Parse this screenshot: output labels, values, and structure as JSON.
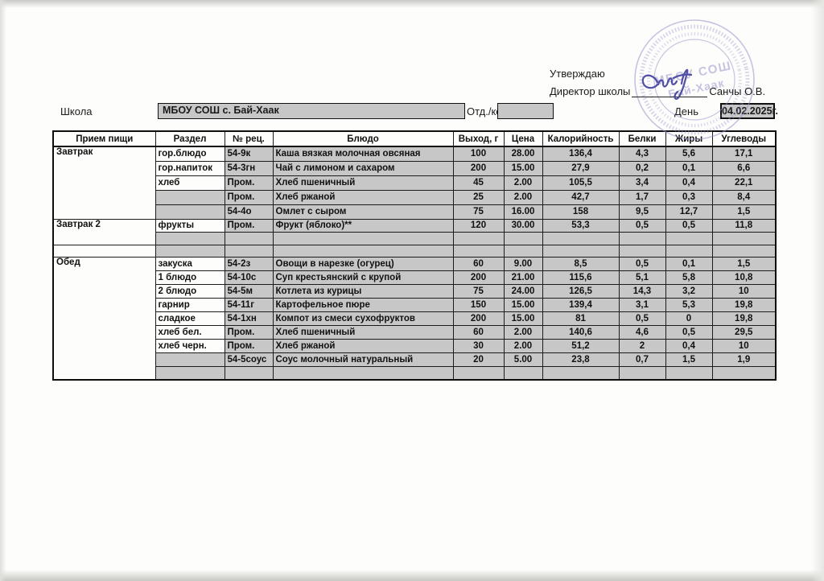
{
  "header": {
    "approve_label": "Утверждаю",
    "director_label": "Директор школы",
    "director_name": "Санчы О.В.",
    "stamp": {
      "line1": "МБОУ СОШ",
      "line2": "Бай-Хаак",
      "color": "#9c92cc"
    },
    "signature_ink_color": "#44439e"
  },
  "fields": {
    "school_label": "Школа",
    "school_value": "МБОУ СОШ с. Бай-Хаак",
    "dept_label": "Отд./корп",
    "dept_value": "",
    "day_label": "День",
    "day_value": "04.02.2025г."
  },
  "colors": {
    "cell_shade": "#c7c7c7",
    "paper": "#fdfdfb"
  },
  "table": {
    "headers": [
      "Прием пищи",
      "Раздел",
      "№ рец.",
      "Блюдо",
      "Выход, г",
      "Цена",
      "Калорийность",
      "Белки",
      "Жиры",
      "Углеводы"
    ],
    "sections": [
      {
        "meal": "Завтрак",
        "rows": [
          {
            "razdel": "гор.блюдо",
            "rec": "54-9к",
            "dish": "Каша вязкая молочная овсяная",
            "out": "100",
            "price": "28.00",
            "kcal": "136,4",
            "protein": "4,3",
            "fat": "5,6",
            "carbs": "17,1"
          },
          {
            "razdel": "гор.напиток",
            "rec": "54-3гн",
            "dish": "Чай с лимоном и сахаром",
            "out": "200",
            "price": "15.00",
            "kcal": "27,9",
            "protein": "0,2",
            "fat": "0,1",
            "carbs": "6,6"
          },
          {
            "razdel": "хлеб",
            "rec": "Пром.",
            "dish": "Хлеб пшеничный",
            "out": "45",
            "price": "2.00",
            "kcal": "105,5",
            "protein": "3,4",
            "fat": "0,4",
            "carbs": "22,1"
          },
          {
            "razdel": "",
            "rec": "Пром.",
            "dish": "Хлеб ржаной",
            "out": "25",
            "price": "2.00",
            "kcal": "42,7",
            "protein": "1,7",
            "fat": "0,3",
            "carbs": "8,4"
          },
          {
            "razdel": "",
            "rec": "54-4о",
            "dish": "Омлет с сыром",
            "out": "75",
            "price": "16.00",
            "kcal": "158",
            "protein": "9,5",
            "fat": "12,7",
            "carbs": "1,5"
          }
        ]
      },
      {
        "meal": "Завтрак 2",
        "rows": [
          {
            "razdel": "фрукты",
            "rec": "Пром.",
            "dish": "Фрукт (яблоко)**",
            "out": "120",
            "price": "30.00",
            "kcal": "53,3",
            "protein": "0,5",
            "fat": "0,5",
            "carbs": "11,8"
          },
          {
            "razdel": "",
            "rec": "",
            "dish": "",
            "out": "",
            "price": "",
            "kcal": "",
            "protein": "",
            "fat": "",
            "carbs": ""
          }
        ]
      },
      {
        "meal": "",
        "rows": [
          {
            "razdel": "",
            "rec": "",
            "dish": "",
            "out": "",
            "price": "",
            "kcal": "",
            "protein": "",
            "fat": "",
            "carbs": ""
          }
        ]
      },
      {
        "meal": "Обед",
        "rows": [
          {
            "razdel": "закуска",
            "rec": "54-2з",
            "dish": "Овощи в нарезке (огурец)",
            "out": "60",
            "price": "9.00",
            "kcal": "8,5",
            "protein": "0,5",
            "fat": "0,1",
            "carbs": "1,5"
          },
          {
            "razdel": "1 блюдо",
            "rec": "54-10с",
            "dish": "Суп крестьянский с крупой",
            "out": "200",
            "price": "21.00",
            "kcal": "115,6",
            "protein": "5,1",
            "fat": "5,8",
            "carbs": "10,8"
          },
          {
            "razdel": "2 блюдо",
            "rec": "54-5м",
            "dish": "Котлета из курицы",
            "out": "75",
            "price": "24.00",
            "kcal": "126,5",
            "protein": "14,3",
            "fat": "3,2",
            "carbs": "10"
          },
          {
            "razdel": "гарнир",
            "rec": "54-11г",
            "dish": "Картофельное пюре",
            "out": "150",
            "price": "15.00",
            "kcal": "139,4",
            "protein": "3,1",
            "fat": "5,3",
            "carbs": "19,8"
          },
          {
            "razdel": "сладкое",
            "rec": "54-1хн",
            "dish": "Компот из смеси сухофруктов",
            "out": "200",
            "price": "15.00",
            "kcal": "81",
            "protein": "0,5",
            "fat": "0",
            "carbs": "19,8"
          },
          {
            "razdel": "хлеб бел.",
            "rec": "Пром.",
            "dish": "Хлеб пшеничный",
            "out": "60",
            "price": "2.00",
            "kcal": "140,6",
            "protein": "4,6",
            "fat": "0,5",
            "carbs": "29,5"
          },
          {
            "razdel": "хлеб черн.",
            "rec": "Пром.",
            "dish": "Хлеб ржаной",
            "out": "30",
            "price": "2.00",
            "kcal": "51,2",
            "protein": "2",
            "fat": "0,4",
            "carbs": "10"
          },
          {
            "razdel": "",
            "rec": "54-5соус",
            "dish": "Соус молочный натуральный",
            "out": "20",
            "price": "5.00",
            "kcal": "23,8",
            "protein": "0,7",
            "fat": "1,5",
            "carbs": "1,9"
          },
          {
            "razdel": "",
            "rec": "",
            "dish": "",
            "out": "",
            "price": "",
            "kcal": "",
            "protein": "",
            "fat": "",
            "carbs": ""
          }
        ]
      }
    ]
  }
}
